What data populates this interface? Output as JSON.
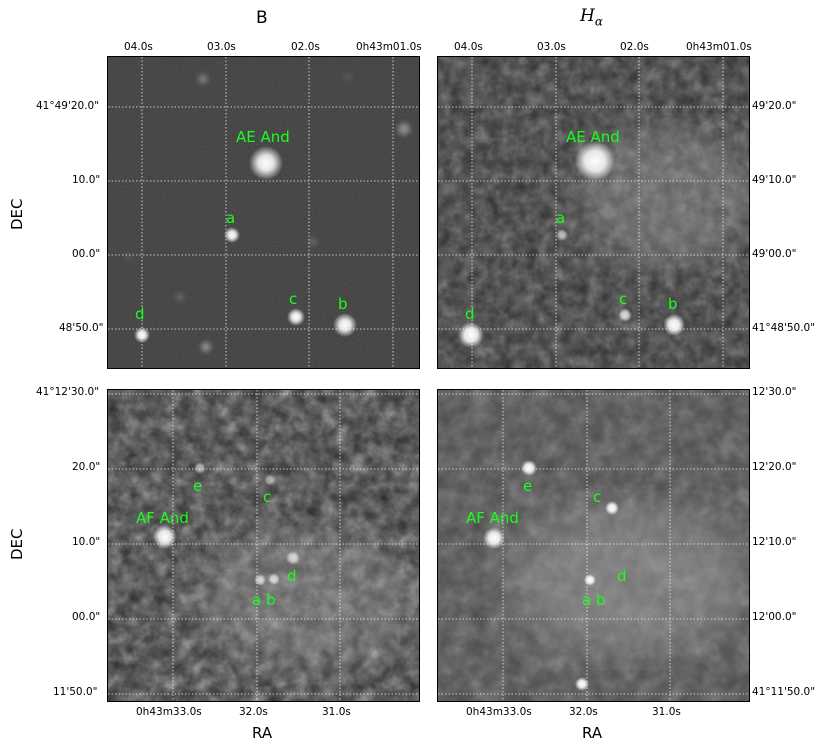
{
  "titles": {
    "left": "B",
    "right_base": "H",
    "right_sub": "α"
  },
  "axis_names": {
    "ra": "RA",
    "dec": "DEC"
  },
  "top": {
    "ra_ticks": [
      "04.0s",
      "03.0s",
      "02.0s",
      "0h43m01.0s"
    ],
    "dec_left": [
      "41°49'20.0\"",
      "10.0\"",
      "00.0\"",
      "48'50.0\""
    ],
    "dec_right": [
      "49'20.0\"",
      "49'10.0\"",
      "49'00.0\"",
      "41°48'50.0\""
    ],
    "labels": {
      "main": "AE And",
      "a": "a",
      "b": "b",
      "c": "c",
      "d": "d"
    }
  },
  "bottom": {
    "ra_ticks": [
      "0h43m33.0s",
      "32.0s",
      "31.0s"
    ],
    "dec_left": [
      "41°12'30.0\"",
      "20.0\"",
      "10.0\"",
      "00.0\"",
      "11'50.0\""
    ],
    "dec_right": [
      "12'30.0\"",
      "12'20.0\"",
      "12'10.0\"",
      "12'00.0\"",
      "41°11'50.0\""
    ],
    "labels": {
      "main": "AF And",
      "a": "a",
      "b": "b",
      "c": "c",
      "d": "d",
      "e": "e"
    }
  },
  "colors": {
    "label": "#1aff1a",
    "grid": "#ffffff"
  }
}
